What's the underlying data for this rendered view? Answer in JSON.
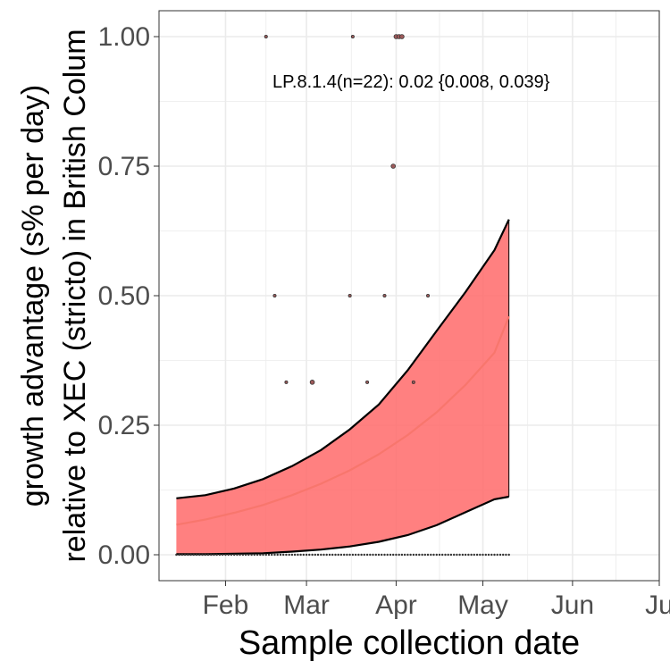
{
  "chart_data": {
    "type": "line",
    "title": "",
    "xlabel": "Sample collection date",
    "ylabel_line1": "growth advantage (s% per day)",
    "ylabel_line2": "relative to XEC (stricto) in British Colum",
    "annotation": "LP.8.1.4(n=22): 0.02 {0.008, 0.039}",
    "grid": true,
    "x_ticks": [
      "Feb",
      "Mar",
      "Apr",
      "May",
      "Jun",
      "Ju"
    ],
    "x_tick_dates": [
      "2025-02-01",
      "2025-03-01",
      "2025-04-01",
      "2025-05-01",
      "2025-06-01",
      "2025-07-01"
    ],
    "xlim": [
      "2025-01-09",
      "2025-07-01"
    ],
    "y_ticks": [
      "0.00",
      "0.25",
      "0.50",
      "0.75",
      "1.00"
    ],
    "ylim": [
      -0.05,
      1.05
    ],
    "colors": {
      "fit": "#f8766d",
      "ribbon": "#ff6a6a",
      "ribbon_edge": "#000000",
      "grid": "#ebebeb",
      "panel_border": "#333333"
    },
    "series": [
      {
        "name": "LP.8.1.4",
        "x": [
          "2025-01-15",
          "2025-01-25",
          "2025-02-04",
          "2025-02-14",
          "2025-02-24",
          "2025-03-06",
          "2025-03-16",
          "2025-03-26",
          "2025-04-05",
          "2025-04-15",
          "2025-04-25",
          "2025-05-05",
          "2025-05-10"
        ],
        "fit": [
          0.058,
          0.068,
          0.081,
          0.096,
          0.115,
          0.137,
          0.163,
          0.194,
          0.231,
          0.275,
          0.328,
          0.39,
          0.46
        ],
        "lower": [
          0.001,
          0.001,
          0.002,
          0.003,
          0.006,
          0.01,
          0.016,
          0.025,
          0.038,
          0.057,
          0.082,
          0.107,
          0.112
        ],
        "upper": [
          0.109,
          0.115,
          0.128,
          0.146,
          0.171,
          0.202,
          0.242,
          0.29,
          0.356,
          0.432,
          0.507,
          0.588,
          0.647
        ]
      }
    ],
    "observed_points": [
      {
        "x": "2025-02-15",
        "y": 1.0,
        "size": 1
      },
      {
        "x": "2025-03-17",
        "y": 1.0,
        "size": 1
      },
      {
        "x": "2025-04-01",
        "y": 1.0,
        "size": 2
      },
      {
        "x": "2025-04-02",
        "y": 1.0,
        "size": 2
      },
      {
        "x": "2025-04-03",
        "y": 1.0,
        "size": 2
      },
      {
        "x": "2025-03-31",
        "y": 0.75,
        "size": 2
      },
      {
        "x": "2025-02-18",
        "y": 0.5,
        "size": 1
      },
      {
        "x": "2025-03-16",
        "y": 0.5,
        "size": 1
      },
      {
        "x": "2025-03-28",
        "y": 0.5,
        "size": 1
      },
      {
        "x": "2025-04-12",
        "y": 0.5,
        "size": 1
      },
      {
        "x": "2025-02-22",
        "y": 0.333,
        "size": 1
      },
      {
        "x": "2025-03-03",
        "y": 0.333,
        "size": 2
      },
      {
        "x": "2025-03-22",
        "y": 0.333,
        "size": 1
      },
      {
        "x": "2025-04-07",
        "y": 0.333,
        "size": 1
      }
    ],
    "zero_points_range": [
      "2025-01-15",
      "2025-05-10"
    ]
  }
}
